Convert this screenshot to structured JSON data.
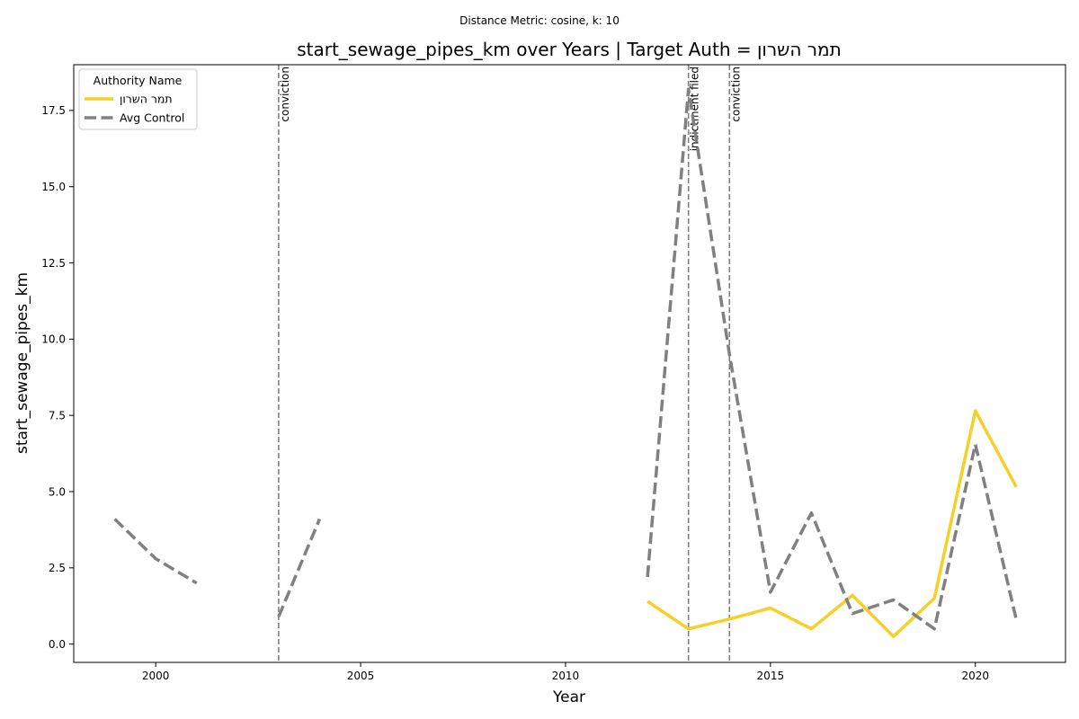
{
  "chart_data": {
    "type": "line",
    "suptitle": "Distance Metric: cosine, k: 10",
    "title": "start_sewage_pipes_km over Years | Target Auth = תמר השרון",
    "xlabel": "Year",
    "ylabel": "start_sewage_pipes_km",
    "xlim": [
      1998,
      2022.2
    ],
    "ylim": [
      -0.6,
      19.0
    ],
    "xticks": [
      2000,
      2005,
      2010,
      2015,
      2020
    ],
    "xtick_labels": [
      "2000",
      "2005",
      "2010",
      "2015",
      "2020"
    ],
    "yticks": [
      0,
      2.5,
      5,
      7.5,
      10,
      12.5,
      15,
      17.5
    ],
    "ytick_labels": [
      "0.0",
      "2.5",
      "5.0",
      "7.5",
      "10.0",
      "12.5",
      "15.0",
      "17.5"
    ],
    "grid": false,
    "legend": {
      "title": "Authority Name",
      "placement": "top-left"
    },
    "series": [
      {
        "name": "תמר השרון",
        "color": "#f4d028",
        "style": "solid",
        "segments": [
          [
            [
              2012,
              1.4
            ],
            [
              2013,
              0.5
            ],
            [
              2014,
              0.82
            ],
            [
              2015,
              1.18
            ],
            [
              2016,
              0.5
            ],
            [
              2017,
              1.6
            ],
            [
              2018,
              0.25
            ],
            [
              2019,
              1.5
            ],
            [
              2020,
              7.65
            ],
            [
              2021,
              5.15
            ]
          ]
        ]
      },
      {
        "name": "Avg Control",
        "color": "#808080",
        "style": "dashed",
        "segments": [
          [
            [
              1999,
              4.1
            ],
            [
              2000,
              2.8
            ],
            [
              2001,
              2.0
            ]
          ],
          [
            [
              2003,
              0.9
            ],
            [
              2004,
              4.1
            ]
          ],
          [
            [
              2012,
              2.2
            ],
            [
              2013,
              18.2
            ],
            [
              2014,
              9.5
            ],
            [
              2015,
              1.7
            ],
            [
              2016,
              4.3
            ],
            [
              2017,
              1.0
            ],
            [
              2018,
              1.45
            ],
            [
              2019,
              0.5
            ],
            [
              2020,
              6.55
            ],
            [
              2021,
              0.8
            ]
          ]
        ]
      }
    ],
    "events": [
      {
        "year": 2003,
        "label": "conviction"
      },
      {
        "year": 2013,
        "label": "indictment filed"
      },
      {
        "year": 2014,
        "label": "conviction"
      }
    ]
  }
}
